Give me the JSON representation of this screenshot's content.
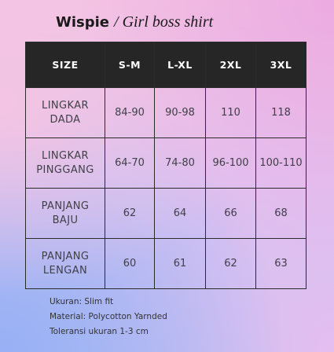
{
  "header": {
    "brand": "Wispie",
    "subtitle": "/ Girl boss shirt"
  },
  "table": {
    "columns": [
      "SIZE",
      "S-M",
      "L-XL",
      "2XL",
      "3XL"
    ],
    "rows": [
      {
        "label_line1": "LINGKAR",
        "label_line2": "DADA",
        "values": [
          "84-90",
          "90-98",
          "110",
          "118"
        ]
      },
      {
        "label_line1": "LINGKAR",
        "label_line2": "PINGGANG",
        "values": [
          "64-70",
          "74-80",
          "96-100",
          "100-110"
        ]
      },
      {
        "label_line1": "PANJANG",
        "label_line2": "BAJU",
        "values": [
          "62",
          "64",
          "66",
          "68"
        ]
      },
      {
        "label_line1": "PANJANG",
        "label_line2": "LENGAN",
        "values": [
          "60",
          "61",
          "62",
          "63"
        ]
      }
    ]
  },
  "notes": [
    "Ukuran: Slim fit",
    "Material: Polycotton Yarnded",
    "Toleransi ukuran 1-3 cm"
  ],
  "colors": {
    "header_bg": "#262626",
    "header_text": "#ffffff",
    "border": "#2b2b2b"
  }
}
